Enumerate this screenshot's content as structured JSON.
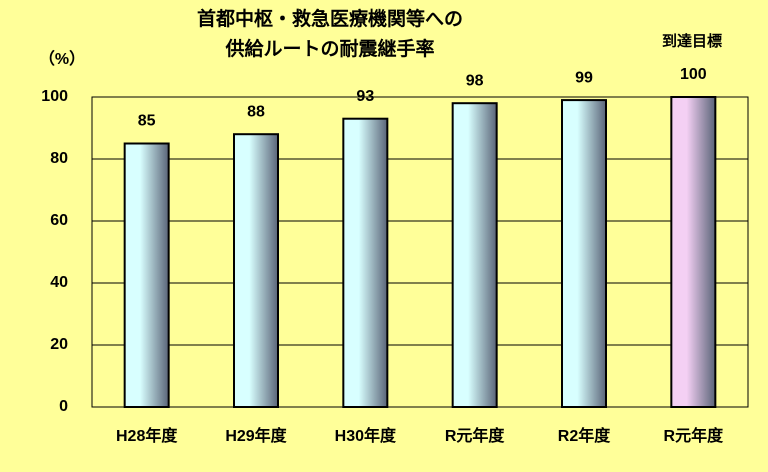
{
  "chart_data": {
    "type": "bar",
    "title": [
      "首都中枢・救急医療機関等への",
      "供給ルートの耐震継手率"
    ],
    "y_label": "（%）",
    "annotation": "到達目標",
    "categories": [
      "H28年度",
      "H29年度",
      "H30年度",
      "R元年度",
      "R2年度",
      "R元年度"
    ],
    "values": [
      85,
      88,
      93,
      98,
      99,
      100
    ],
    "colors": [
      "#d8ffff",
      "#d8ffff",
      "#d8ffff",
      "#d8ffff",
      "#d8ffff",
      "#f4d0f4"
    ],
    "ylim": [
      0,
      100
    ],
    "yticks": [
      0,
      20,
      40,
      60,
      80,
      100
    ],
    "grid": true
  }
}
